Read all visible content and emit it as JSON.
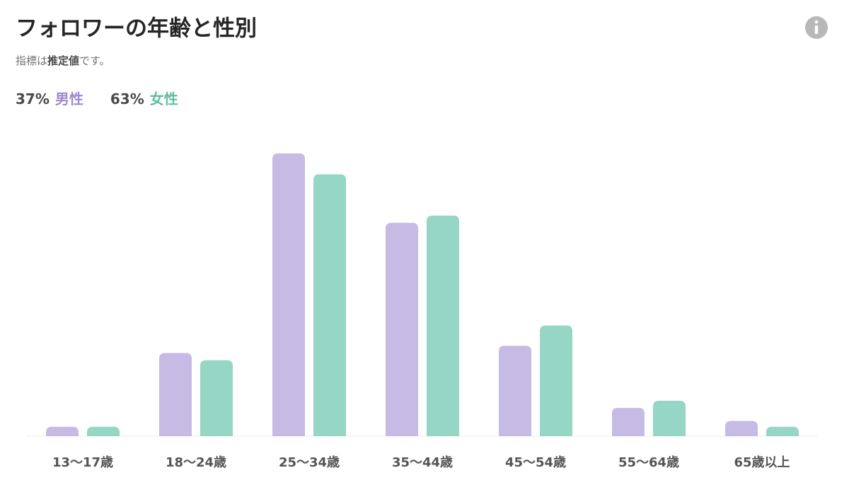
{
  "chart_data": {
    "type": "bar",
    "title": "フォロワーの年齢と性別",
    "subtitle": [
      "指標は",
      "推定値",
      "です。"
    ],
    "categories": [
      "13〜17歳",
      "18〜24歳",
      "25〜34歳",
      "35〜44歳",
      "45〜54歳",
      "55〜64歳",
      "65歳以上"
    ],
    "series": [
      {
        "name": "男性",
        "share": "37%",
        "color": "#c5bbe4",
        "label_color": "#9d89cf",
        "values": [
          1.3,
          11.5,
          39.1,
          29.5,
          12.5,
          3.9,
          2.1
        ]
      },
      {
        "name": "女性",
        "share": "63%",
        "color": "#95d6c4",
        "label_color": "#5fbea4",
        "values": [
          1.3,
          10.5,
          36.2,
          30.5,
          15.3,
          4.9,
          1.3
        ]
      }
    ]
  }
}
